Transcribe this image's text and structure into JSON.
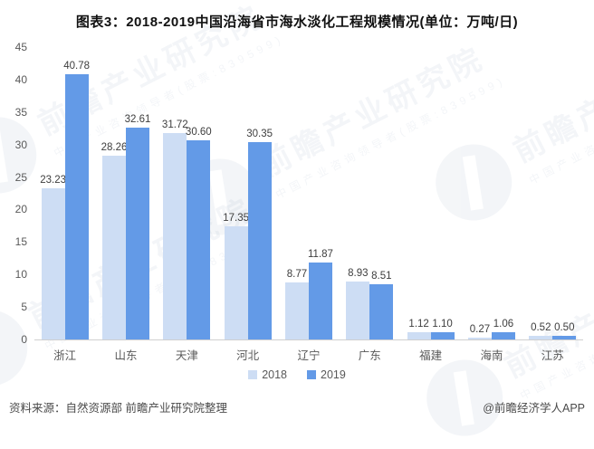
{
  "title": "图表3：2018-2019中国沿海省市海水淡化工程规模情况(单位：万吨/日)",
  "chart_data": {
    "type": "bar",
    "title": "图表3：2018-2019中国沿海省市海水淡化工程规模情况(单位：万吨/日)",
    "categories": [
      "浙江",
      "山东",
      "天津",
      "河北",
      "辽宁",
      "广东",
      "福建",
      "海南",
      "江苏"
    ],
    "series": [
      {
        "name": "2018",
        "color": "#cdddf4",
        "values": [
          23.23,
          28.26,
          31.72,
          17.35,
          8.77,
          8.93,
          1.12,
          0.27,
          0.52
        ],
        "labels": [
          "23.23",
          "28.26",
          "31.72",
          "17.35",
          "8.77",
          "8.93",
          "1.12",
          "0.27",
          "0.52"
        ]
      },
      {
        "name": "2019",
        "color": "#639ae7",
        "values": [
          40.78,
          32.61,
          30.6,
          30.35,
          11.87,
          8.51,
          1.1,
          1.06,
          0.5
        ],
        "labels": [
          "40.78",
          "32.61",
          "30.60",
          "30.35",
          "11.87",
          "8.51",
          "1.10",
          "1.06",
          "0.50"
        ]
      }
    ],
    "xlabel": "",
    "ylabel": "",
    "unit": "万吨/日",
    "ylim": [
      0,
      45
    ],
    "yticks": [
      0,
      5,
      10,
      15,
      20,
      25,
      30,
      35,
      40,
      45
    ],
    "grid": false,
    "legend_position": "bottom"
  },
  "watermark": {
    "text": "前瞻产业研究院",
    "subtext": "中国产业咨询领导者(股票:839599)"
  },
  "footer": {
    "source": "资料来源：自然资源部 前瞻产业研究院整理",
    "credit": "@前瞻经济学人APP"
  }
}
